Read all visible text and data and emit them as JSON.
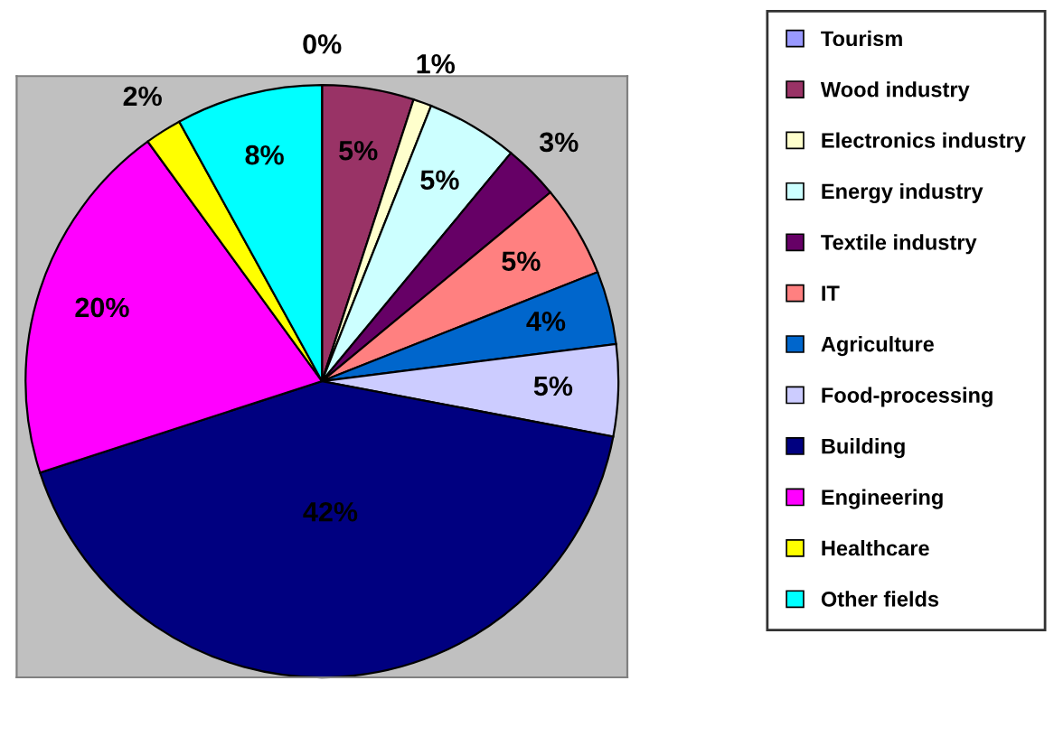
{
  "chart_data": {
    "type": "pie",
    "categories": [
      "Tourism",
      "Wood industry",
      "Electronics industry",
      "Energy industry",
      "Textile industry",
      "IT",
      "Agriculture",
      "Food-processing",
      "Building",
      "Engineering",
      "Healthcare",
      "Other fields"
    ],
    "values": [
      0,
      5,
      1,
      5,
      3,
      5,
      4,
      5,
      42,
      20,
      2,
      8
    ],
    "colors": [
      "#9999ff",
      "#993366",
      "#ffffcc",
      "#ccffff",
      "#660066",
      "#ff8080",
      "#0066cc",
      "#ccccff",
      "#000080",
      "#ff00ff",
      "#ffff00",
      "#00ffff"
    ],
    "value_labels": [
      "0%",
      "5%",
      "1%",
      "5%",
      "3%",
      "5%",
      "4%",
      "5%",
      "42%",
      "20%",
      "2%",
      "8%"
    ],
    "legend": "right"
  }
}
